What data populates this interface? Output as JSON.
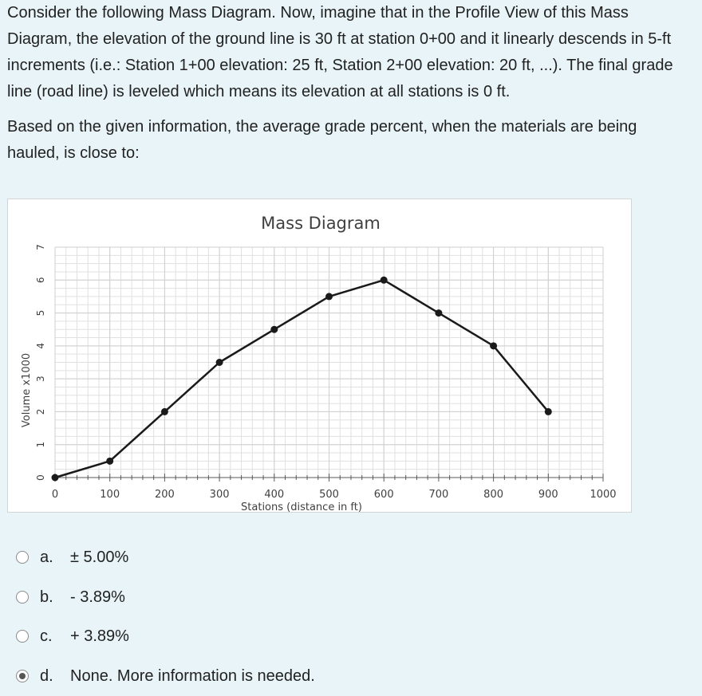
{
  "question": {
    "paragraph1": "Consider the following Mass Diagram. Now, imagine that in the Profile View of this Mass Diagram, the elevation of the ground line is 30 ft at station 0+00 and it linearly descends in 5-ft increments (i.e.: Station 1+00 elevation: 25 ft, Station 2+00 elevation: 20 ft, ...). The final grade line (road line) is leveled which means its elevation at all stations is 0 ft.",
    "paragraph2": "Based on the given information, the average grade percent, when the materials are being hauled, is close to:"
  },
  "chart_data": {
    "type": "line",
    "title": "Mass Diagram",
    "xlabel": "Stations (distance in ft)",
    "ylabel": "Volume x1000",
    "xlim": [
      0,
      1000
    ],
    "ylim": [
      0,
      7
    ],
    "x_ticks": [
      0,
      100,
      200,
      300,
      400,
      500,
      600,
      700,
      800,
      900,
      1000
    ],
    "y_ticks": [
      0,
      1,
      2,
      3,
      4,
      5,
      6,
      7
    ],
    "grid": true,
    "x": [
      0,
      100,
      200,
      300,
      400,
      500,
      600,
      700,
      800,
      900
    ],
    "values": [
      0,
      0.5,
      2,
      3.5,
      4.5,
      5.5,
      6,
      5,
      4,
      2
    ],
    "line_color": "#1a1a1a",
    "grid_color": "#e0e0e0"
  },
  "options": [
    {
      "letter": "a.",
      "text": "± 5.00%",
      "selected": false
    },
    {
      "letter": "b.",
      "text": "- 3.89%",
      "selected": false
    },
    {
      "letter": "c.",
      "text": "+ 3.89%",
      "selected": false
    },
    {
      "letter": "d.",
      "text": "None. More information is needed.",
      "selected": true
    }
  ]
}
